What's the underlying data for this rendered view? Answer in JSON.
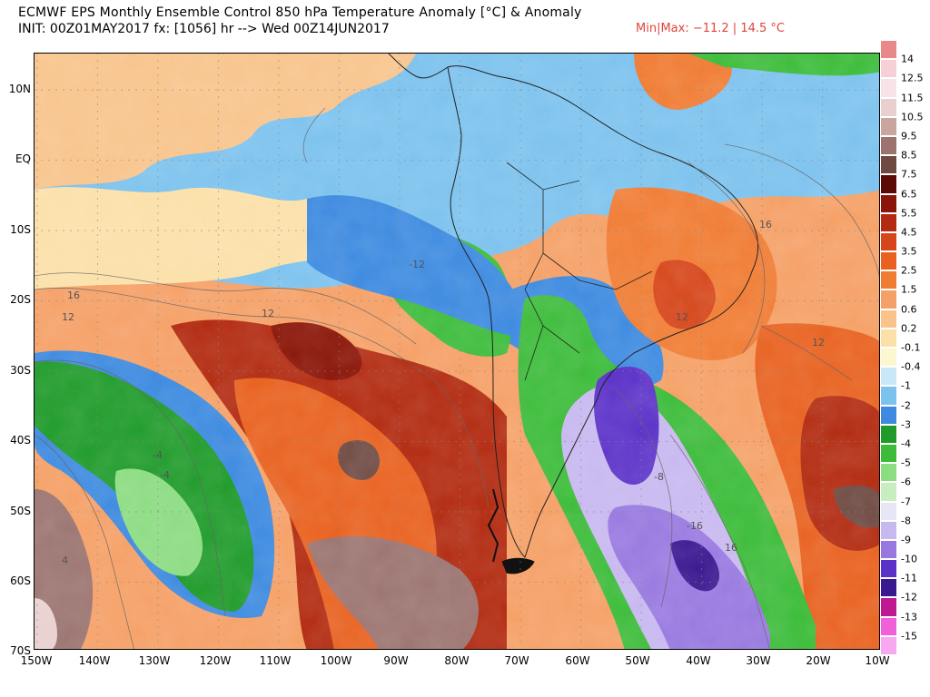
{
  "header": {
    "title": "ECMWF EPS Monthly Ensemble Control 850 hPa Temperature Anomaly [°C] & Anomaly",
    "init": "INIT: 00Z01MAY2017 fx: [1056] hr --> Wed 00Z14JUN2017",
    "minmax": "Min|Max: −11.2 | 14.5 °C"
  },
  "map": {
    "lat_labels": [
      "10N",
      "EQ",
      "10S",
      "20S",
      "30S",
      "40S",
      "50S",
      "60S",
      "70S"
    ],
    "lon_labels": [
      "150W",
      "140W",
      "130W",
      "120W",
      "110W",
      "100W",
      "90W",
      "80W",
      "70W",
      "60W",
      "50W",
      "40W",
      "30W",
      "20W",
      "10W"
    ],
    "contour_labels": [
      "-12",
      "16",
      "12",
      "16",
      "12",
      "-8",
      "-4",
      "4",
      "-4",
      "12",
      "-16",
      "16",
      "12"
    ]
  },
  "legend": {
    "labels": [
      "14",
      "12.5",
      "11.5",
      "10.5",
      "9.5",
      "8.5",
      "7.5",
      "6.5",
      "5.5",
      "4.5",
      "3.5",
      "2.5",
      "1.5",
      "0.6",
      "0.2",
      "-0.1",
      "-0.4",
      "-1",
      "-2",
      "-3",
      "-4",
      "-5",
      "-6",
      "-7",
      "-8",
      "-9",
      "-10",
      "-11",
      "-12",
      "-13",
      "-15"
    ],
    "colors": [
      "#e8888a",
      "#f6d0d6",
      "#f8e4e8",
      "#e9d0cf",
      "#c9a5a0",
      "#9b7470",
      "#6e4a42",
      "#5b0a08",
      "#8a1508",
      "#b22a10",
      "#d6461a",
      "#e8611f",
      "#f07c34",
      "#f5a066",
      "#f8c48c",
      "#fbe0a8",
      "#fdf7d0",
      "#c8e8f8",
      "#7cc2ee",
      "#3d8ae0",
      "#1f9b2a",
      "#3cbc3a",
      "#8cdc82",
      "#c8eec0",
      "#e6e6f6",
      "#c8b8f0",
      "#9878e0",
      "#5b32c8",
      "#3a1890",
      "#c01890",
      "#f060d8",
      "#f8a8f0"
    ]
  }
}
